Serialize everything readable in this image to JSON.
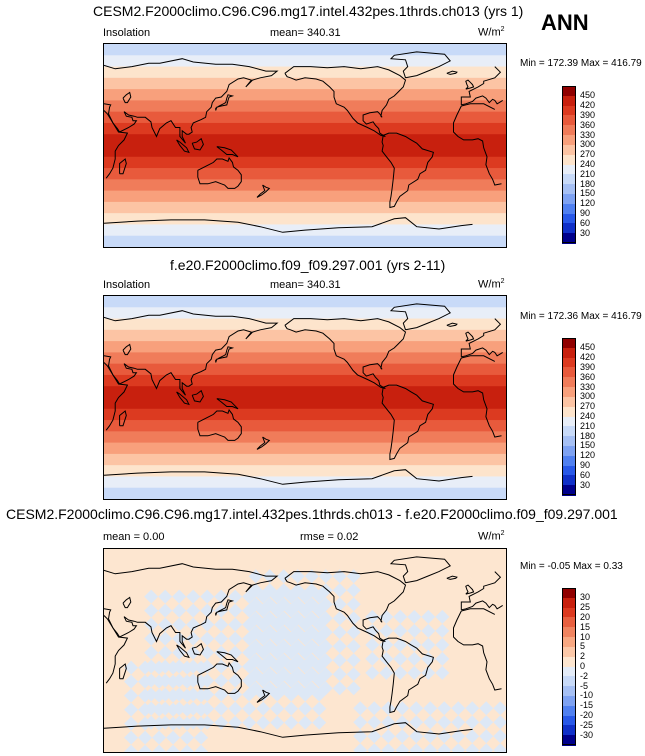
{
  "season": "ANN",
  "colors": {
    "pos_scale": [
      "#00008b",
      "#1030c8",
      "#2858e8",
      "#5080f0",
      "#7ea2f2",
      "#a6c0f4",
      "#c8daf8",
      "#e8eef8",
      "#fde4cc",
      "#fcc4a4",
      "#f8a07c",
      "#f07c5a",
      "#e85a3c",
      "#dc3a20",
      "#c8200e",
      "#900000"
    ],
    "diff_scale": [
      "#00008b",
      "#1030c8",
      "#2858e8",
      "#5080f0",
      "#7ea2f2",
      "#a6c0f4",
      "#c8daf8",
      "#e4ecf8",
      "#fde6d0",
      "#fcc8a8",
      "#f8a882",
      "#f08460",
      "#e86040",
      "#dc3a20",
      "#c8200e",
      "#900000"
    ]
  },
  "panels": [
    {
      "title": "CESM2.F2000climo.C96.C96.mg17.intel.432pes.1thrds.ch013 (yrs 1)",
      "left_label": "Insolation",
      "center_label": "mean= 340.31",
      "units": "W/m",
      "units_sup": "2",
      "minmax": "Min = 172.39 Max = 416.79",
      "colorbar_labels": [
        "450",
        "420",
        "390",
        "360",
        "330",
        "300",
        "270",
        "240",
        "210",
        "180",
        "150",
        "120",
        "90",
        "60",
        "30"
      ]
    },
    {
      "title": "f.e20.F2000climo.f09_f09.297.001 (yrs 2-11)",
      "left_label": "Insolation",
      "center_label": "mean= 340.31",
      "units": "W/m",
      "units_sup": "2",
      "minmax": "Min = 172.36 Max = 416.79",
      "colorbar_labels": [
        "450",
        "420",
        "390",
        "360",
        "330",
        "300",
        "270",
        "240",
        "210",
        "180",
        "150",
        "120",
        "90",
        "60",
        "30"
      ]
    },
    {
      "title": "CESM2.F2000climo.C96.C96.mg17.intel.432pes.1thrds.ch013 - f.e20.F2000climo.f09_f09.297.001",
      "left_label": "mean =   0.00",
      "center_label": "rmse =   0.02",
      "units": "W/m",
      "units_sup": "2",
      "minmax": "Min =  -0.05 Max =   0.33",
      "colorbar_labels": [
        "30",
        "25",
        "20",
        "15",
        "10",
        "5",
        "2",
        "0",
        "-2",
        "-5",
        "-10",
        "-15",
        "-20",
        "-25",
        "-30"
      ]
    }
  ],
  "chart_data": [
    {
      "type": "heatmap",
      "title": "CESM2.F2000climo.C96.C96.mg17.intel.432pes.1thrds.ch013 (yrs 1)",
      "variable": "Insolation",
      "units": "W/m2",
      "mean": 340.31,
      "min": 172.39,
      "max": 416.79,
      "levels": [
        30,
        60,
        90,
        120,
        150,
        180,
        210,
        240,
        270,
        300,
        330,
        360,
        390,
        420,
        450
      ],
      "zonal_bands_north_to_south": [
        180,
        210,
        240,
        270,
        300,
        330,
        360,
        390,
        420,
        420,
        390,
        360,
        330,
        300,
        270,
        240,
        210,
        180
      ]
    },
    {
      "type": "heatmap",
      "title": "f.e20.F2000climo.f09_f09.297.001 (yrs 2-11)",
      "variable": "Insolation",
      "units": "W/m2",
      "mean": 340.31,
      "min": 172.36,
      "max": 416.79,
      "levels": [
        30,
        60,
        90,
        120,
        150,
        180,
        210,
        240,
        270,
        300,
        330,
        360,
        390,
        420,
        450
      ],
      "zonal_bands_north_to_south": [
        180,
        210,
        240,
        270,
        300,
        330,
        360,
        390,
        420,
        420,
        390,
        360,
        330,
        300,
        270,
        240,
        210,
        180
      ]
    },
    {
      "type": "heatmap",
      "title": "CESM2.F2000climo.C96.C96.mg17.intel.432pes.1thrds.ch013 - f.e20.F2000climo.f09_f09.297.001",
      "units": "W/m2",
      "mean": 0.0,
      "rmse": 0.02,
      "min": -0.05,
      "max": 0.33,
      "levels": [
        -30,
        -25,
        -20,
        -15,
        -10,
        -5,
        -2,
        0,
        2,
        5,
        10,
        15,
        20,
        25,
        30
      ]
    }
  ]
}
